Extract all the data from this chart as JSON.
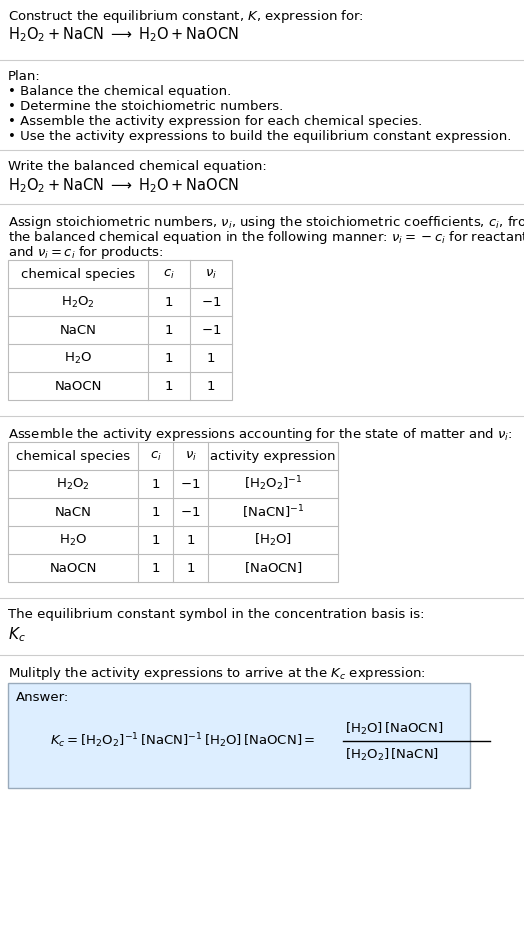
{
  "title_line1": "Construct the equilibrium constant, $K$, expression for:",
  "title_line2": "$\\mathrm{H_2O_2 + NaCN \\;\\longrightarrow\\; H_2O + NaOCN}$",
  "plan_header": "Plan:",
  "plan_items": [
    "• Balance the chemical equation.",
    "• Determine the stoichiometric numbers.",
    "• Assemble the activity expression for each chemical species.",
    "• Use the activity expressions to build the equilibrium constant expression."
  ],
  "sec2_header": "Write the balanced chemical equation:",
  "sec2_eq": "$\\mathrm{H_2O_2 + NaCN \\;\\longrightarrow\\; H_2O + NaOCN}$",
  "sec3_text1": "Assign stoichiometric numbers, $\\nu_i$, using the stoichiometric coefficients, $c_i$, from",
  "sec3_text2": "the balanced chemical equation in the following manner: $\\nu_i = -c_i$ for reactants",
  "sec3_text3": "and $\\nu_i = c_i$ for products:",
  "table1_cols": [
    "chemical species",
    "$c_i$",
    "$\\nu_i$"
  ],
  "table1_rows": [
    [
      "$\\mathrm{H_2O_2}$",
      "1",
      "$-1$"
    ],
    [
      "NaCN",
      "1",
      "$-1$"
    ],
    [
      "$\\mathrm{H_2O}$",
      "1",
      "1"
    ],
    [
      "NaOCN",
      "1",
      "1"
    ]
  ],
  "sec4_header": "Assemble the activity expressions accounting for the state of matter and $\\nu_i$:",
  "table2_cols": [
    "chemical species",
    "$c_i$",
    "$\\nu_i$",
    "activity expression"
  ],
  "table2_rows": [
    [
      "$\\mathrm{H_2O_2}$",
      "1",
      "$-1$",
      "$[\\mathrm{H_2O_2}]^{-1}$"
    ],
    [
      "NaCN",
      "1",
      "$-1$",
      "$[\\mathrm{NaCN}]^{-1}$"
    ],
    [
      "$\\mathrm{H_2O}$",
      "1",
      "1",
      "$[\\mathrm{H_2O}]$"
    ],
    [
      "NaOCN",
      "1",
      "1",
      "$[\\mathrm{NaOCN}]$"
    ]
  ],
  "sec5_header": "The equilibrium constant symbol in the concentration basis is:",
  "sec5_symbol": "$K_c$",
  "sec6_header": "Mulitply the activity expressions to arrive at the $K_c$ expression:",
  "answer_label": "Answer:",
  "answer_lhs": "$K_c = [\\mathrm{H_2O_2}]^{-1}\\,[\\mathrm{NaCN}]^{-1}\\,[\\mathrm{H_2O}]\\,[\\mathrm{NaOCN}] = $",
  "answer_frac_num": "$[\\mathrm{H_2O}]\\,[\\mathrm{NaOCN}]$",
  "answer_frac_den": "$[\\mathrm{H_2O_2}]\\,[\\mathrm{NaCN}]$",
  "bg_color": "#ffffff",
  "text_color": "#000000",
  "table_border_color": "#bbbbbb",
  "answer_bg_color": "#ddeeff",
  "answer_border_color": "#99aabb",
  "divider_color": "#cccccc",
  "font_size": 9.5,
  "small_font": 9.0
}
